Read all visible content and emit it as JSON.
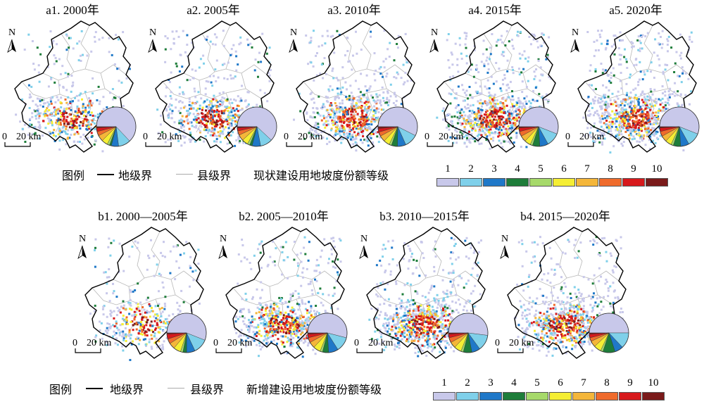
{
  "colors": {
    "county_boundary": "#b8b8b8",
    "prefecture_boundary": "#000000",
    "levels": [
      "#c8c8ea",
      "#7fd0ea",
      "#1f78c8",
      "#1e7d3a",
      "#a6d96a",
      "#f5ee34",
      "#f4b63a",
      "#ef6b2c",
      "#d7191c",
      "#7a1a1a"
    ]
  },
  "row_a": {
    "panels": [
      {
        "title": "a1. 2000年",
        "pie": [
          0.63,
          0.1,
          0.06,
          0.015,
          0.02,
          0.05,
          0.05,
          0.035,
          0.03,
          0.01
        ],
        "density": 0.55
      },
      {
        "title": "a2. 2005年",
        "pie": [
          0.62,
          0.1,
          0.07,
          0.02,
          0.02,
          0.05,
          0.05,
          0.035,
          0.025,
          0.01
        ],
        "density": 0.62
      },
      {
        "title": "a3. 2010年",
        "pie": [
          0.58,
          0.11,
          0.07,
          0.05,
          0.02,
          0.05,
          0.05,
          0.035,
          0.03,
          0.015
        ],
        "density": 0.8
      },
      {
        "title": "a4. 2015年",
        "pie": [
          0.56,
          0.11,
          0.07,
          0.06,
          0.02,
          0.05,
          0.05,
          0.04,
          0.03,
          0.01
        ],
        "density": 0.95
      },
      {
        "title": "a5. 2020年",
        "pie": [
          0.56,
          0.11,
          0.07,
          0.06,
          0.02,
          0.05,
          0.05,
          0.04,
          0.03,
          0.01
        ],
        "density": 1.0
      }
    ],
    "legend": {
      "prefix": "图例",
      "prefecture": "地级界",
      "county": "县级界",
      "title": "现状建设用地坡度份额等级",
      "levels": [
        "1",
        "2",
        "3",
        "4",
        "5",
        "6",
        "7",
        "8",
        "9",
        "10"
      ]
    }
  },
  "row_b": {
    "panels": [
      {
        "title": "b1. 2000—2005年",
        "pie": [
          0.56,
          0.12,
          0.07,
          0.03,
          0.02,
          0.06,
          0.05,
          0.04,
          0.04,
          0.01
        ],
        "density": 0.45
      },
      {
        "title": "b2. 2005—2010年",
        "pie": [
          0.54,
          0.12,
          0.08,
          0.05,
          0.02,
          0.06,
          0.05,
          0.04,
          0.03,
          0.01
        ],
        "density": 0.75
      },
      {
        "title": "b3. 2010—2015年",
        "pie": [
          0.52,
          0.13,
          0.07,
          0.07,
          0.02,
          0.06,
          0.05,
          0.04,
          0.03,
          0.01
        ],
        "density": 0.95
      },
      {
        "title": "b4. 2015—2020年",
        "pie": [
          0.5,
          0.13,
          0.07,
          0.1,
          0.02,
          0.06,
          0.05,
          0.03,
          0.03,
          0.01
        ],
        "density": 0.85
      }
    ],
    "legend": {
      "prefix": "图例",
      "prefecture": "地级界",
      "county": "县级界",
      "title": "新增建设用地坡度份额等级",
      "levels": [
        "1",
        "2",
        "3",
        "4",
        "5",
        "6",
        "7",
        "8",
        "9",
        "10"
      ]
    }
  },
  "north_label": "N",
  "scale_bar": {
    "zero": "0",
    "distance": "20 km"
  }
}
